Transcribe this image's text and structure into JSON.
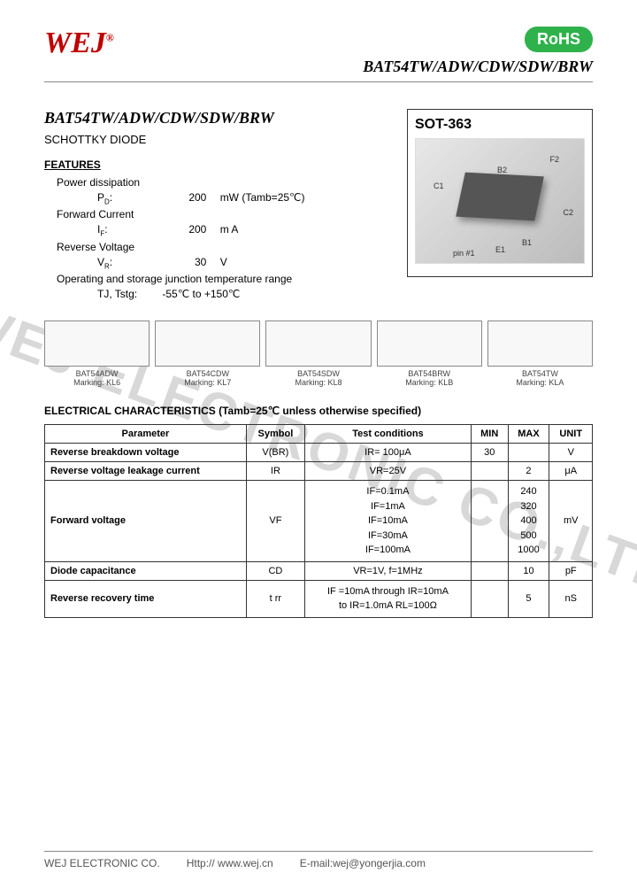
{
  "header": {
    "logo": "WEJ",
    "logo_sup": "®",
    "rohs": "RoHS",
    "part_number": "BAT54TW/ADW/CDW/SDW/BRW"
  },
  "title": "BAT54TW/ADW/CDW/SDW/BRW",
  "subtitle": "SCHOTTKY DIODE",
  "features_header": "FEATURES",
  "features": {
    "pd_label": "Power dissipation",
    "pd_sym": "P",
    "pd_sub": "D",
    "pd_val": "200",
    "pd_unit": "mW (Tamb=25℃)",
    "if_label": "Forward Current",
    "if_sym": "I",
    "if_sub": "F",
    "if_val": "200",
    "if_unit": "m A",
    "vr_label": "Reverse Voltage",
    "vr_sym": "V",
    "vr_sub": "R",
    "vr_val": "30",
    "vr_unit": "V",
    "temp_label": "Operating and storage junction temperature range",
    "temp_sym": "TJ, Tstg:",
    "temp_val": "-55℃ to +150℃"
  },
  "package": {
    "title": "SOT-363",
    "pins": [
      "F2",
      "B2",
      "C1",
      "C2",
      "B1",
      "E1",
      "pin #1"
    ]
  },
  "variants": [
    {
      "name": "BAT54ADW",
      "marking": "Marking: KL6"
    },
    {
      "name": "BAT54CDW",
      "marking": "Marking: KL7"
    },
    {
      "name": "BAT54SDW",
      "marking": "Marking: KL8"
    },
    {
      "name": "BAT54BRW",
      "marking": "Marking: KLB"
    },
    {
      "name": "BAT54TW",
      "marking": "Marking: KLA"
    }
  ],
  "elec_header": "ELECTRICAL CHARACTERISTICS (Tamb=25℃   unless   otherwise   specified)",
  "table": {
    "columns": [
      "Parameter",
      "Symbol",
      "Test   conditions",
      "MIN",
      "MAX",
      "UNIT"
    ],
    "rows": [
      {
        "param": "Reverse breakdown voltage",
        "symbol": "V(BR)",
        "cond": "IR= 100μA",
        "min": "30",
        "max": "",
        "unit": "V"
      },
      {
        "param": "Reverse voltage   leakage current",
        "symbol": "IR",
        "cond": "VR=25V",
        "min": "",
        "max": "2",
        "unit": "μA"
      },
      {
        "param": "Forward   voltage",
        "symbol": "VF",
        "cond_lines": [
          "IF=0.1mA",
          "IF=1mA",
          "IF=10mA",
          "IF=30mA",
          "IF=100mA"
        ],
        "max_lines": [
          "240",
          "320",
          "400",
          "500",
          "1000"
        ],
        "min": "",
        "unit": "mV"
      },
      {
        "param": "Diode   capacitance",
        "symbol": "CD",
        "cond": "VR=1V,  f=1MHz",
        "min": "",
        "max": "10",
        "unit": "pF"
      },
      {
        "param": "Reverse recovery time",
        "symbol": "t rr",
        "cond_lines": [
          "IF =10mA  through  IR=10mA",
          "to  IR=1.0mA  RL=100Ω"
        ],
        "min": "",
        "max": "5",
        "unit": "nS"
      }
    ]
  },
  "footer": {
    "company": "WEJ ELECTRONIC CO.",
    "url_label": "Http://",
    "url": "www.wej.cn",
    "email_label": "E-mail:",
    "email": "wej@yongerjia.com"
  },
  "watermark": "WEJ ELECTRONIC CO.,LTD"
}
